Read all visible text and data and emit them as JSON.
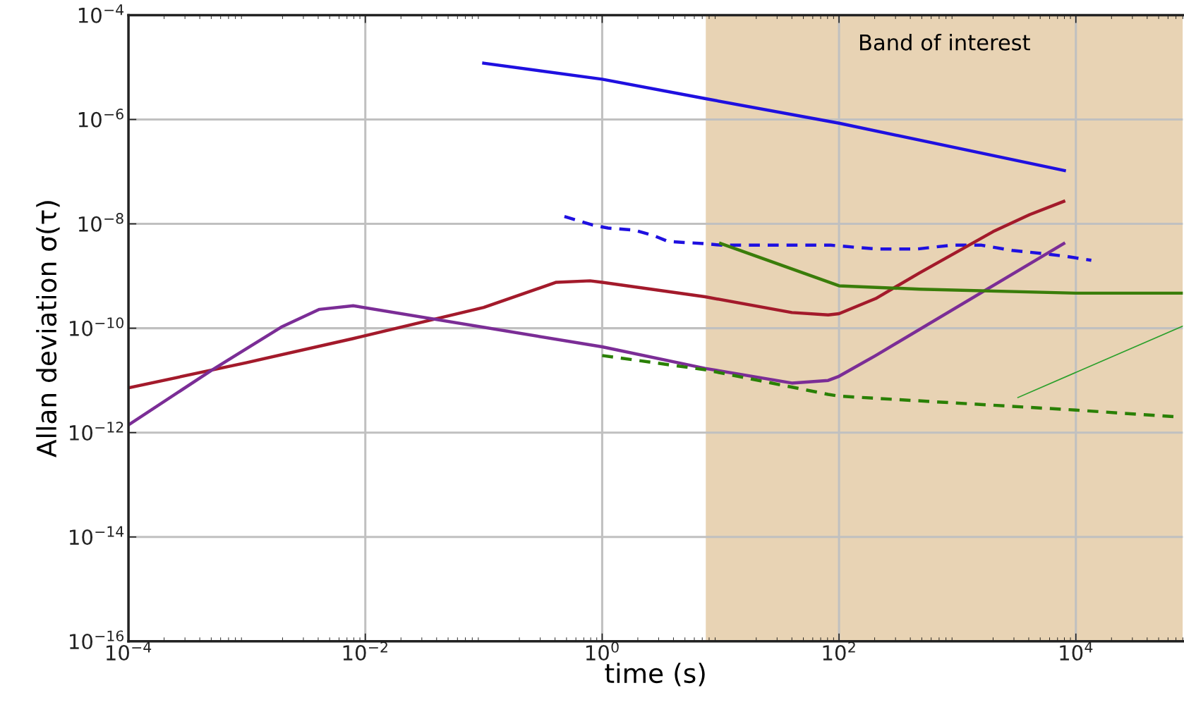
{
  "chart_data": {
    "type": "line",
    "xlabel": "time (s)",
    "ylabel": "Allan deviation σ(τ)",
    "log": "xy",
    "grid": true,
    "legend": false,
    "xlim": [
      0.0001,
      80000
    ],
    "ylim": [
      1e-16,
      0.0001
    ],
    "xticks": [
      {
        "value": 0.0001,
        "label": "10$^{−4}$"
      },
      {
        "value": 0.01,
        "label": "10$^{−2}$"
      },
      {
        "value": 1,
        "label": "10$^{0}$"
      },
      {
        "value": 100,
        "label": "10$^{2}$"
      },
      {
        "value": 10000,
        "label": "10$^{4}$"
      }
    ],
    "yticks": [
      {
        "value": 1e-16,
        "label": "10$^{−16}$"
      },
      {
        "value": 1e-14,
        "label": "10$^{−14}$"
      },
      {
        "value": 1e-12,
        "label": "10$^{−12}$"
      },
      {
        "value": 1e-10,
        "label": "10$^{−10}$"
      },
      {
        "value": 1e-08,
        "label": "10$^{−8}$"
      },
      {
        "value": 1e-06,
        "label": "10$^{−6}$"
      },
      {
        "value": 0.0001,
        "label": "10$^{−4}$"
      }
    ],
    "bands": [
      {
        "axis": "x",
        "from": 7.5,
        "to": 80000,
        "label": "Band of interest",
        "color": "#e8d3b4"
      }
    ],
    "series": [
      {
        "color": "#1f10e0",
        "line_style": "solid",
        "x": [
          0.1,
          1,
          7.5,
          100,
          8000
        ],
        "values": [
          1.2e-05,
          5.9e-06,
          2.5e-06,
          8.5e-07,
          1.05e-07
        ]
      },
      {
        "color": "#1f10e0",
        "line_style": "dashed",
        "x": [
          0.48,
          0.83,
          1.12,
          1.86,
          2.7,
          3.6,
          4.9,
          7.1,
          10.2,
          35,
          85,
          205,
          460,
          890,
          1600,
          2900,
          5200,
          8100,
          13500
        ],
        "values": [
          1.38e-08,
          9.5e-09,
          8.3e-09,
          7.6e-09,
          6e-09,
          4.6e-09,
          4.4e-09,
          4.2e-09,
          3.9e-09,
          3.9e-09,
          3.9e-09,
          3.3e-09,
          3.3e-09,
          3.9e-09,
          3.9e-09,
          3.1e-09,
          2.7e-09,
          2.4e-09,
          2e-09
        ]
      },
      {
        "color": "#a31a2b",
        "line_style": "solid",
        "x": [
          0.0001,
          0.001,
          0.0078,
          0.1,
          0.41,
          0.79,
          1,
          7.4,
          40,
          81,
          100,
          204,
          479,
          2000,
          4070,
          7900
        ],
        "values": [
          7.2e-12,
          2.2e-11,
          6.3e-11,
          2.5e-10,
          7.6e-10,
          8.1e-10,
          7.6e-10,
          4e-10,
          2e-10,
          1.8e-10,
          1.9e-10,
          3.7e-10,
          1.15e-09,
          7.1e-09,
          1.5e-08,
          2.7e-08
        ]
      },
      {
        "color": "#7b2d96",
        "line_style": "solid",
        "x": [
          0.0001,
          0.0005,
          0.00195,
          0.0041,
          0.0079,
          1,
          7.4,
          40,
          81,
          100,
          204,
          7900
        ],
        "values": [
          1.4e-12,
          1.55e-11,
          1.05e-10,
          2.3e-10,
          2.7e-10,
          4.4e-11,
          1.7e-11,
          8.9e-12,
          1e-11,
          1.2e-11,
          3e-11,
          4.2e-09
        ]
      },
      {
        "color": "#3a7d0a",
        "line_style": "solid",
        "x": [
          10,
          100,
          480,
          10000,
          80000
        ],
        "values": [
          4.2e-09,
          6.5e-10,
          5.6e-10,
          4.7e-10,
          4.7e-10
        ]
      },
      {
        "color": "#2ca02c",
        "x": [
          3240,
          80000
        ],
        "values": [
          4.7e-12,
          1.1e-10
        ]
      },
      {
        "color": "#2a8005",
        "line_style": "dashed",
        "x": [
          1,
          7.4,
          81,
          100,
          10000,
          72000
        ],
        "values": [
          3e-11,
          1.6e-11,
          5.4e-12,
          5e-12,
          2.7e-12,
          2e-12
        ]
      }
    ]
  }
}
